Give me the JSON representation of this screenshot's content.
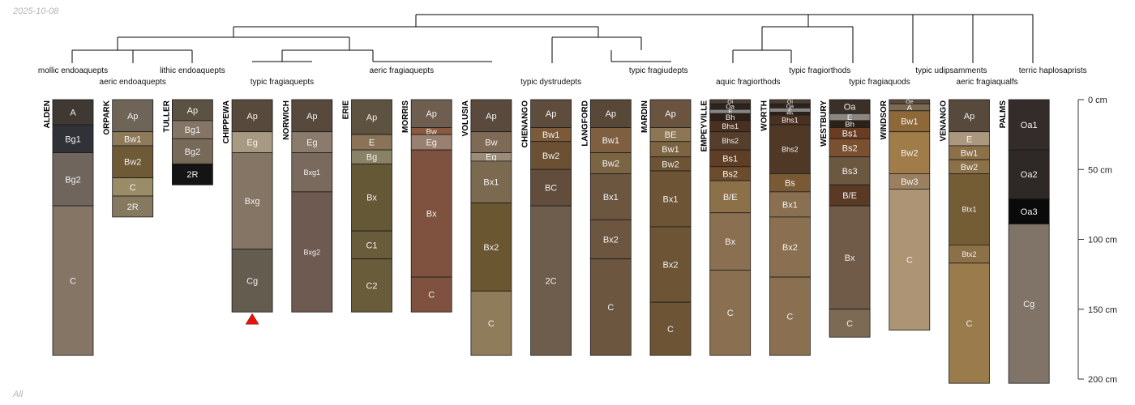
{
  "corner_date": "2025-10-08",
  "corner_label": "All",
  "colors": {
    "marker": "#e8120c",
    "line": "#000000",
    "tick": "#333333"
  },
  "chart_data": {
    "type": "soil-profile-sketch",
    "title": "",
    "depth_unit": "cm",
    "ylim": [
      0,
      200
    ],
    "depth_ticks": [
      0,
      50,
      100,
      150,
      200
    ],
    "depth_tick_labels": [
      "0 cm",
      "50 cm",
      "100 cm",
      "150 cm",
      "200 cm"
    ],
    "profiles": [
      {
        "name": "ALDEN",
        "horizons": [
          {
            "name": "A",
            "top": 0,
            "bottom": 18,
            "color": "#3f3833"
          },
          {
            "name": "Bg1",
            "top": 18,
            "bottom": 38,
            "color": "#303238"
          },
          {
            "name": "Bg2",
            "top": 38,
            "bottom": 76,
            "color": "#6f655c"
          },
          {
            "name": "C",
            "top": 76,
            "bottom": 183,
            "color": "#857565"
          }
        ]
      },
      {
        "name": "ORPARK",
        "horizons": [
          {
            "name": "Ap",
            "top": 0,
            "bottom": 23,
            "color": "#6e6458"
          },
          {
            "name": "Bw1",
            "top": 23,
            "bottom": 33,
            "color": "#8f7b5a"
          },
          {
            "name": "Bw2",
            "top": 33,
            "bottom": 56,
            "color": "#6e5a36"
          },
          {
            "name": "C",
            "top": 56,
            "bottom": 69,
            "color": "#9a8c66"
          },
          {
            "name": "2R",
            "top": 69,
            "bottom": 84,
            "color": "#857a5f"
          }
        ]
      },
      {
        "name": "TULLER",
        "horizons": [
          {
            "name": "Ap",
            "top": 0,
            "bottom": 15,
            "color": "#5c5244"
          },
          {
            "name": "Bg1",
            "top": 15,
            "bottom": 28,
            "color": "#857566"
          },
          {
            "name": "Bg2",
            "top": 28,
            "bottom": 46,
            "color": "#776a59"
          },
          {
            "name": "2R",
            "top": 46,
            "bottom": 61,
            "color": "#141414"
          }
        ]
      },
      {
        "name": "CHIPPEWA",
        "truncated": true,
        "horizons": [
          {
            "name": "Ap",
            "top": 0,
            "bottom": 23,
            "color": "#57493c"
          },
          {
            "name": "Eg",
            "top": 23,
            "bottom": 38,
            "color": "#a89a82"
          },
          {
            "name": "Bxg",
            "top": 38,
            "bottom": 107,
            "color": "#857565"
          },
          {
            "name": "Cg",
            "top": 107,
            "bottom": 152,
            "color": "#655c50"
          }
        ]
      },
      {
        "name": "NORWICH",
        "horizons": [
          {
            "name": "Ap",
            "top": 0,
            "bottom": 23,
            "color": "#57493c"
          },
          {
            "name": "Eg",
            "top": 23,
            "bottom": 38,
            "color": "#8a7b6c"
          },
          {
            "name": "Bxg1",
            "top": 38,
            "bottom": 66,
            "color": "#7a6a5d"
          },
          {
            "name": "Bxg2",
            "top": 66,
            "bottom": 152,
            "color": "#6e5a50"
          }
        ]
      },
      {
        "name": "ERIE",
        "horizons": [
          {
            "name": "Ap",
            "top": 0,
            "bottom": 25,
            "color": "#5e5240"
          },
          {
            "name": "E",
            "top": 25,
            "bottom": 36,
            "color": "#8a7356"
          },
          {
            "name": "Bg",
            "top": 36,
            "bottom": 46,
            "color": "#8a8264"
          },
          {
            "name": "Bx",
            "top": 46,
            "bottom": 94,
            "color": "#645836"
          },
          {
            "name": "C1",
            "top": 94,
            "bottom": 114,
            "color": "#695c3a"
          },
          {
            "name": "C2",
            "top": 114,
            "bottom": 152,
            "color": "#695c3a"
          }
        ]
      },
      {
        "name": "MORRIS",
        "horizons": [
          {
            "name": "Ap",
            "top": 0,
            "bottom": 20,
            "color": "#6e5e50"
          },
          {
            "name": "Bw",
            "top": 20,
            "bottom": 25,
            "color": "#8a5a40"
          },
          {
            "name": "Eg",
            "top": 25,
            "bottom": 36,
            "color": "#9a8070"
          },
          {
            "name": "Bx",
            "top": 36,
            "bottom": 127,
            "color": "#7f5240"
          },
          {
            "name": "C",
            "top": 127,
            "bottom": 152,
            "color": "#7f5240"
          }
        ]
      },
      {
        "name": "VOLUSIA",
        "horizons": [
          {
            "name": "Ap",
            "top": 0,
            "bottom": 23,
            "color": "#5a4a3e"
          },
          {
            "name": "Bw",
            "top": 23,
            "bottom": 38,
            "color": "#7e6a55"
          },
          {
            "name": "Eg",
            "top": 38,
            "bottom": 44,
            "color": "#9a8c78"
          },
          {
            "name": "Bx1",
            "top": 44,
            "bottom": 74,
            "color": "#7c6a50"
          },
          {
            "name": "Bx2",
            "top": 74,
            "bottom": 137,
            "color": "#6a5630"
          },
          {
            "name": "C",
            "top": 137,
            "bottom": 183,
            "color": "#8e7c5a"
          }
        ]
      },
      {
        "name": "CHENANGO",
        "horizons": [
          {
            "name": "Ap",
            "top": 0,
            "bottom": 20,
            "color": "#5e4c3c"
          },
          {
            "name": "Bw1",
            "top": 20,
            "bottom": 30,
            "color": "#7a5a38"
          },
          {
            "name": "Bw2",
            "top": 30,
            "bottom": 50,
            "color": "#6c5034"
          },
          {
            "name": "BC",
            "top": 50,
            "bottom": 76,
            "color": "#624c3c"
          },
          {
            "name": "2C",
            "top": 76,
            "bottom": 183,
            "color": "#6e5c4c"
          }
        ]
      },
      {
        "name": "LANGFORD",
        "horizons": [
          {
            "name": "Ap",
            "top": 0,
            "bottom": 20,
            "color": "#574838"
          },
          {
            "name": "Bw1",
            "top": 20,
            "bottom": 38,
            "color": "#7e6040"
          },
          {
            "name": "Bw2",
            "top": 38,
            "bottom": 53,
            "color": "#7a6444"
          },
          {
            "name": "Bx1",
            "top": 53,
            "bottom": 86,
            "color": "#6c5640"
          },
          {
            "name": "Bx2",
            "top": 86,
            "bottom": 114,
            "color": "#6c5640"
          },
          {
            "name": "C",
            "top": 114,
            "bottom": 183,
            "color": "#6c5640"
          }
        ]
      },
      {
        "name": "MARDIN",
        "horizons": [
          {
            "name": "Ap",
            "top": 0,
            "bottom": 20,
            "color": "#6a5440"
          },
          {
            "name": "BE",
            "top": 20,
            "bottom": 30,
            "color": "#8c7654"
          },
          {
            "name": "Bw1",
            "top": 30,
            "bottom": 41,
            "color": "#7c6440"
          },
          {
            "name": "Bw2",
            "top": 41,
            "bottom": 51,
            "color": "#6c5434"
          },
          {
            "name": "Bx1",
            "top": 51,
            "bottom": 91,
            "color": "#6c5434"
          },
          {
            "name": "Bx2",
            "top": 91,
            "bottom": 145,
            "color": "#6c5434"
          },
          {
            "name": "C",
            "top": 145,
            "bottom": 183,
            "color": "#6c5434"
          }
        ]
      },
      {
        "name": "EMPEYVILLE",
        "horizons": [
          {
            "name": "Oi",
            "top": 0,
            "bottom": 3,
            "color": "#4c3c30"
          },
          {
            "name": "Oa",
            "top": 3,
            "bottom": 7,
            "color": "#2c2420"
          },
          {
            "name": "E",
            "top": 7,
            "bottom": 10,
            "color": "#8c8680"
          },
          {
            "name": "Bh",
            "top": 10,
            "bottom": 15,
            "color": "#2e2218"
          },
          {
            "name": "Bhs1",
            "top": 15,
            "bottom": 23,
            "color": "#4a3020"
          },
          {
            "name": "Bhs2",
            "top": 23,
            "bottom": 36,
            "color": "#563e2c"
          },
          {
            "name": "Bs1",
            "top": 36,
            "bottom": 48,
            "color": "#5e3e24"
          },
          {
            "name": "Bs2",
            "top": 48,
            "bottom": 58,
            "color": "#6c4c2c"
          },
          {
            "name": "B/E",
            "top": 58,
            "bottom": 81,
            "color": "#8c7048"
          },
          {
            "name": "Bx",
            "top": 81,
            "bottom": 122,
            "color": "#8a7050"
          },
          {
            "name": "C",
            "top": 122,
            "bottom": 183,
            "color": "#8a7050"
          }
        ]
      },
      {
        "name": "WORTH",
        "horizons": [
          {
            "name": "Oi",
            "top": 0,
            "bottom": 3,
            "color": "#4c3c30"
          },
          {
            "name": "Oa",
            "top": 3,
            "bottom": 6,
            "color": "#2c2420"
          },
          {
            "name": "E",
            "top": 6,
            "bottom": 9,
            "color": "#8c8680"
          },
          {
            "name": "Bh",
            "top": 9,
            "bottom": 11,
            "color": "#2e2218"
          },
          {
            "name": "Bhs1",
            "top": 11,
            "bottom": 18,
            "color": "#4a3020"
          },
          {
            "name": "Bhs2",
            "top": 18,
            "bottom": 53,
            "color": "#503826"
          },
          {
            "name": "Bs",
            "top": 53,
            "bottom": 66,
            "color": "#7a5a34"
          },
          {
            "name": "Bx1",
            "top": 66,
            "bottom": 84,
            "color": "#8a7050"
          },
          {
            "name": "Bx2",
            "top": 84,
            "bottom": 127,
            "color": "#8a7050"
          },
          {
            "name": "C",
            "top": 127,
            "bottom": 183,
            "color": "#8a7050"
          }
        ]
      },
      {
        "name": "WESTBURY",
        "horizons": [
          {
            "name": "Oa",
            "top": 0,
            "bottom": 10,
            "color": "#3a3028"
          },
          {
            "name": "E",
            "top": 10,
            "bottom": 15,
            "color": "#8c8680"
          },
          {
            "name": "Bh",
            "top": 15,
            "bottom": 20,
            "color": "#2e2218"
          },
          {
            "name": "Bs1",
            "top": 20,
            "bottom": 28,
            "color": "#6a3c24"
          },
          {
            "name": "Bs2",
            "top": 28,
            "bottom": 41,
            "color": "#7a5030"
          },
          {
            "name": "Bs3",
            "top": 41,
            "bottom": 61,
            "color": "#6c5840"
          },
          {
            "name": "B/E",
            "top": 61,
            "bottom": 76,
            "color": "#5a3a24"
          },
          {
            "name": "Bx",
            "top": 76,
            "bottom": 150,
            "color": "#705a48"
          },
          {
            "name": "C",
            "top": 150,
            "bottom": 170,
            "color": "#7c6a54"
          }
        ]
      },
      {
        "name": "WINDSOR",
        "horizons": [
          {
            "name": "Oe",
            "top": 0,
            "bottom": 3,
            "color": "#5a4a3c"
          },
          {
            "name": "A",
            "top": 3,
            "bottom": 8,
            "color": "#7c6a54"
          },
          {
            "name": "Bw1",
            "top": 8,
            "bottom": 23,
            "color": "#8e6838"
          },
          {
            "name": "Bw2",
            "top": 23,
            "bottom": 53,
            "color": "#a07c48"
          },
          {
            "name": "Bw3",
            "top": 53,
            "bottom": 64,
            "color": "#9a8060"
          },
          {
            "name": "C",
            "top": 64,
            "bottom": 165,
            "color": "#ac9474"
          }
        ]
      },
      {
        "name": "VENANGO",
        "horizons": [
          {
            "name": "Ap",
            "top": 0,
            "bottom": 23,
            "color": "#57493c"
          },
          {
            "name": "E",
            "top": 23,
            "bottom": 33,
            "color": "#ac987e"
          },
          {
            "name": "Bw1",
            "top": 33,
            "bottom": 43,
            "color": "#8c7048"
          },
          {
            "name": "Bw2",
            "top": 43,
            "bottom": 53,
            "color": "#8c7048"
          },
          {
            "name": "Btx1",
            "top": 53,
            "bottom": 104,
            "color": "#745c34"
          },
          {
            "name": "Btx2",
            "top": 104,
            "bottom": 117,
            "color": "#8c7048"
          },
          {
            "name": "C",
            "top": 117,
            "bottom": 203,
            "color": "#9a7c4c"
          }
        ]
      },
      {
        "name": "PALMS",
        "horizons": [
          {
            "name": "Oa1",
            "top": 0,
            "bottom": 36,
            "color": "#342c2a"
          },
          {
            "name": "Oa2",
            "top": 36,
            "bottom": 71,
            "color": "#2e2826"
          },
          {
            "name": "Oa3",
            "top": 71,
            "bottom": 89,
            "color": "#0a0a0a"
          },
          {
            "name": "Cg",
            "top": 89,
            "bottom": 203,
            "color": "#807468"
          }
        ]
      }
    ],
    "taxa_labels": [
      {
        "text": "mollic endoaquepts",
        "row": 1,
        "under": 0
      },
      {
        "text": "aeric endoaquepts",
        "row": 2,
        "under": 1
      },
      {
        "text": "lithic endoaquepts",
        "row": 1,
        "under": 2
      },
      {
        "text": "typic fragiaquepts",
        "row": 2,
        "under": 3.5
      },
      {
        "text": "aeric fragiaquepts",
        "row": 1,
        "under": 5.5
      },
      {
        "text": "typic dystrudepts",
        "row": 2,
        "under": 8
      },
      {
        "text": "typic fragiudepts",
        "row": 1,
        "under": 9.8
      },
      {
        "text": "aquic fragiorthods",
        "row": 2,
        "under": 11.3
      },
      {
        "text": "typic fragiorthods",
        "row": 1,
        "under": 12.5
      },
      {
        "text": "typic fragiaquods",
        "row": 2,
        "under": 13.5
      },
      {
        "text": "typic udipsamments",
        "row": 1,
        "under": 14.7
      },
      {
        "text": "aeric fragiaqualfs",
        "row": 2,
        "under": 15.3
      },
      {
        "text": "terric haplosaprists",
        "row": 1,
        "under": 16.4
      }
    ]
  }
}
